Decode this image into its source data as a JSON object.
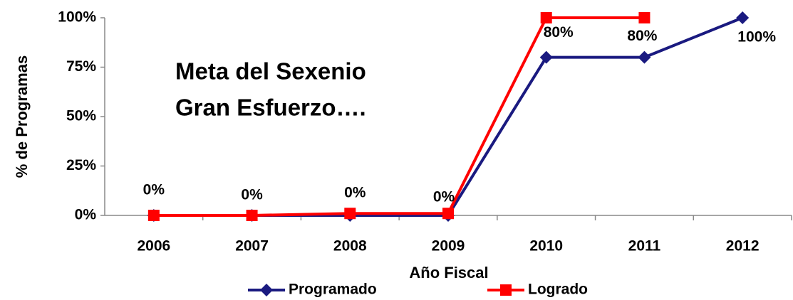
{
  "chart_data": {
    "type": "line",
    "categories": [
      "2006",
      "2007",
      "2008",
      "2009",
      "2010",
      "2011",
      "2012"
    ],
    "series": [
      {
        "name": "Programado",
        "color": "#1a1a80",
        "values": [
          0,
          0,
          0,
          0,
          80,
          80,
          100
        ],
        "value_labels": [
          "0%",
          "0%",
          "0%",
          "0%",
          "80%",
          "80%",
          "100%"
        ]
      },
      {
        "name": "Logrado",
        "color": "#ff0000",
        "values": [
          0,
          0,
          1,
          1,
          100,
          100,
          null
        ]
      }
    ],
    "ylim": [
      0,
      100
    ],
    "yticks": [
      {
        "value": 0,
        "label": "0%"
      },
      {
        "value": 25,
        "label": "25%"
      },
      {
        "value": 50,
        "label": "50%"
      },
      {
        "value": 75,
        "label": "75%"
      },
      {
        "value": 100,
        "label": "100%"
      }
    ],
    "xlabel": "Año Fiscal",
    "ylabel": "% de Programas",
    "annotations": [
      "Meta del Sexenio",
      "Gran Esfuerzo…."
    ],
    "legend": "bottom"
  }
}
